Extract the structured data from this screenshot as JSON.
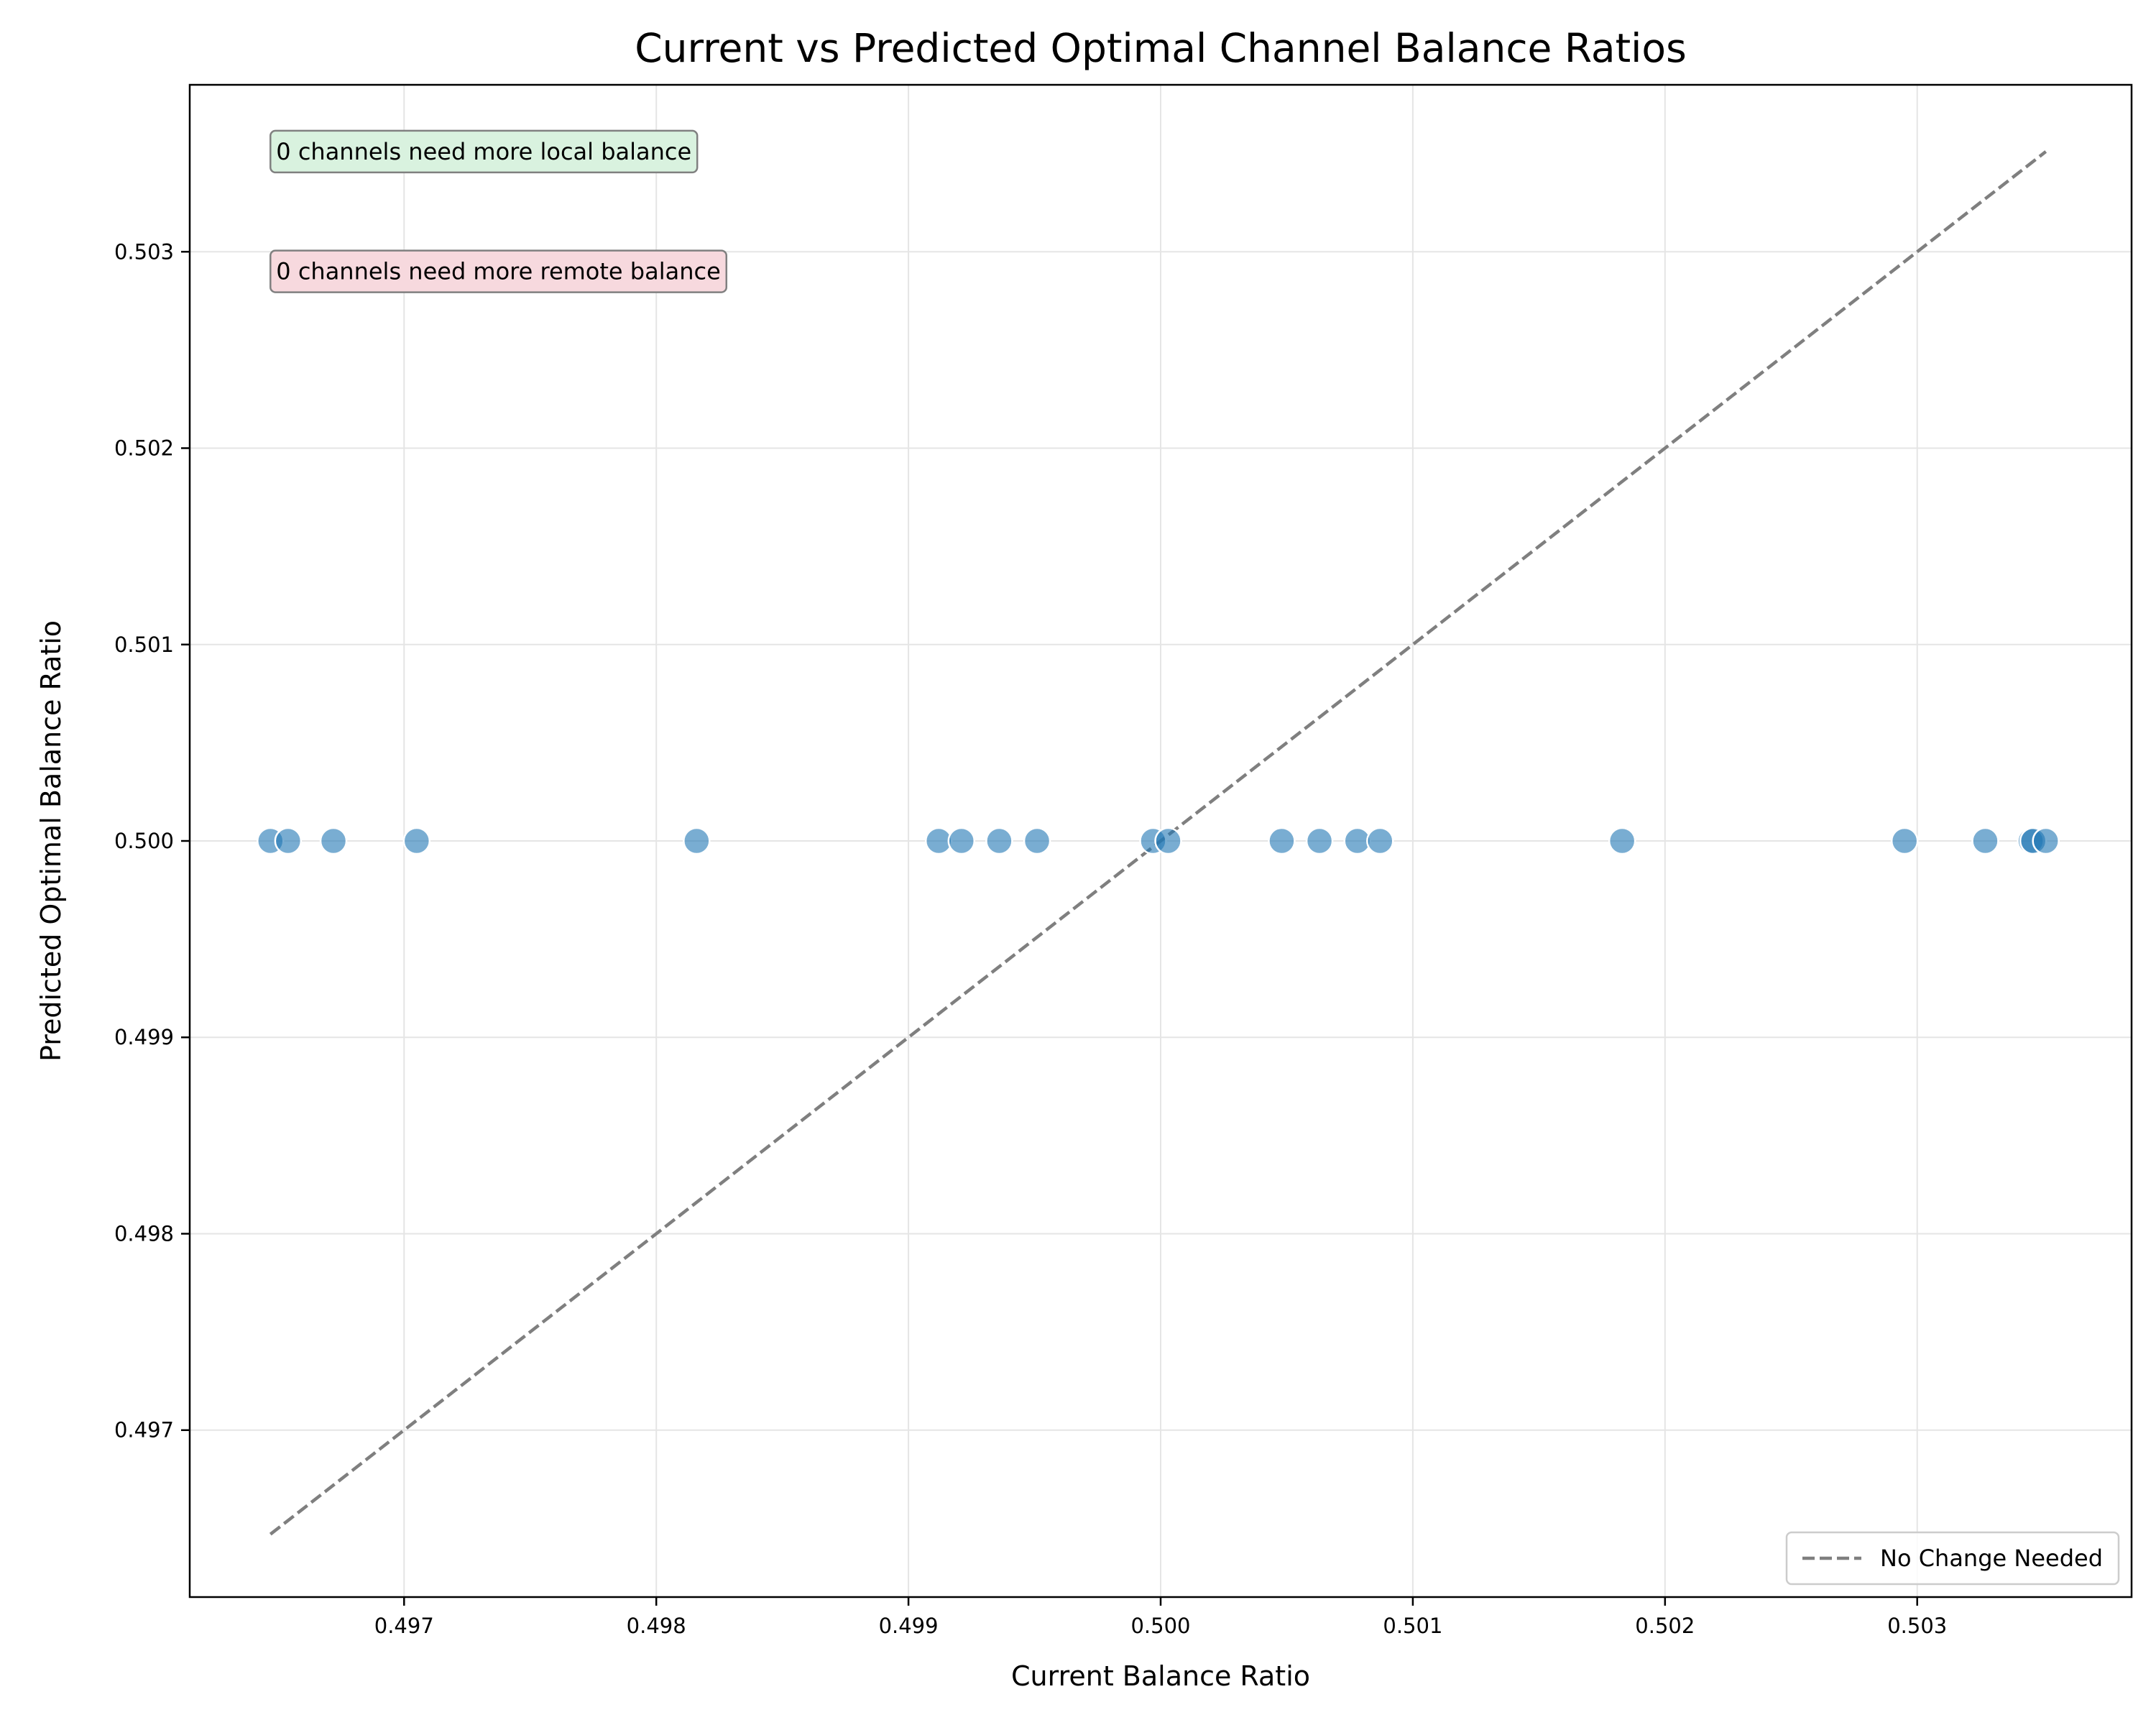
{
  "chart_data": {
    "type": "scatter",
    "title": "Current vs Predicted Optimal Channel Balance Ratios",
    "xlabel": "Current Balance Ratio",
    "ylabel": "Predicted Optimal Balance Ratio",
    "xlim": [
      0.49615,
      0.50385
    ],
    "ylim": [
      0.49615,
      0.50385
    ],
    "xticks": [
      {
        "value": 0.497,
        "label": "0.497"
      },
      {
        "value": 0.498,
        "label": "0.498"
      },
      {
        "value": 0.499,
        "label": "0.499"
      },
      {
        "value": 0.5,
        "label": "0.500"
      },
      {
        "value": 0.501,
        "label": "0.501"
      },
      {
        "value": 0.502,
        "label": "0.502"
      },
      {
        "value": 0.503,
        "label": "0.503"
      }
    ],
    "yticks": [
      {
        "value": 0.497,
        "label": "0.497"
      },
      {
        "value": 0.498,
        "label": "0.498"
      },
      {
        "value": 0.499,
        "label": "0.499"
      },
      {
        "value": 0.5,
        "label": "0.500"
      },
      {
        "value": 0.501,
        "label": "0.501"
      },
      {
        "value": 0.502,
        "label": "0.502"
      },
      {
        "value": 0.503,
        "label": "0.503"
      }
    ],
    "grid": true,
    "points": {
      "x": [
        0.49647,
        0.49654,
        0.49672,
        0.49705,
        0.49816,
        0.49912,
        0.49921,
        0.49936,
        0.49951,
        0.49997,
        0.50003,
        0.50048,
        0.50063,
        0.50078,
        0.50087,
        0.50183,
        0.50295,
        0.50327,
        0.50345,
        0.50346,
        0.50351
      ],
      "y": [
        0.5,
        0.5,
        0.5,
        0.5,
        0.5,
        0.5,
        0.5,
        0.5,
        0.5,
        0.5,
        0.5,
        0.5,
        0.5,
        0.5,
        0.5,
        0.5,
        0.5,
        0.5,
        0.5,
        0.5,
        0.5
      ],
      "color": "#1f77b4"
    },
    "reference_line": {
      "name": "No Change Needed",
      "x": [
        0.49647,
        0.50351
      ],
      "y": [
        0.49647,
        0.50351
      ],
      "style": "dashed",
      "color": "#7f7f7f"
    },
    "annotations": [
      {
        "text": "0 channels need more local balance",
        "x": 0.49647,
        "y": 0.50351,
        "background": "#d9f2df"
      },
      {
        "text": "0 channels need more remote balance",
        "x": 0.49647,
        "y": 0.5029,
        "background": "#f7d9de"
      }
    ],
    "legend": {
      "placement": "lower-right",
      "entries": [
        "No Change Needed"
      ]
    }
  }
}
